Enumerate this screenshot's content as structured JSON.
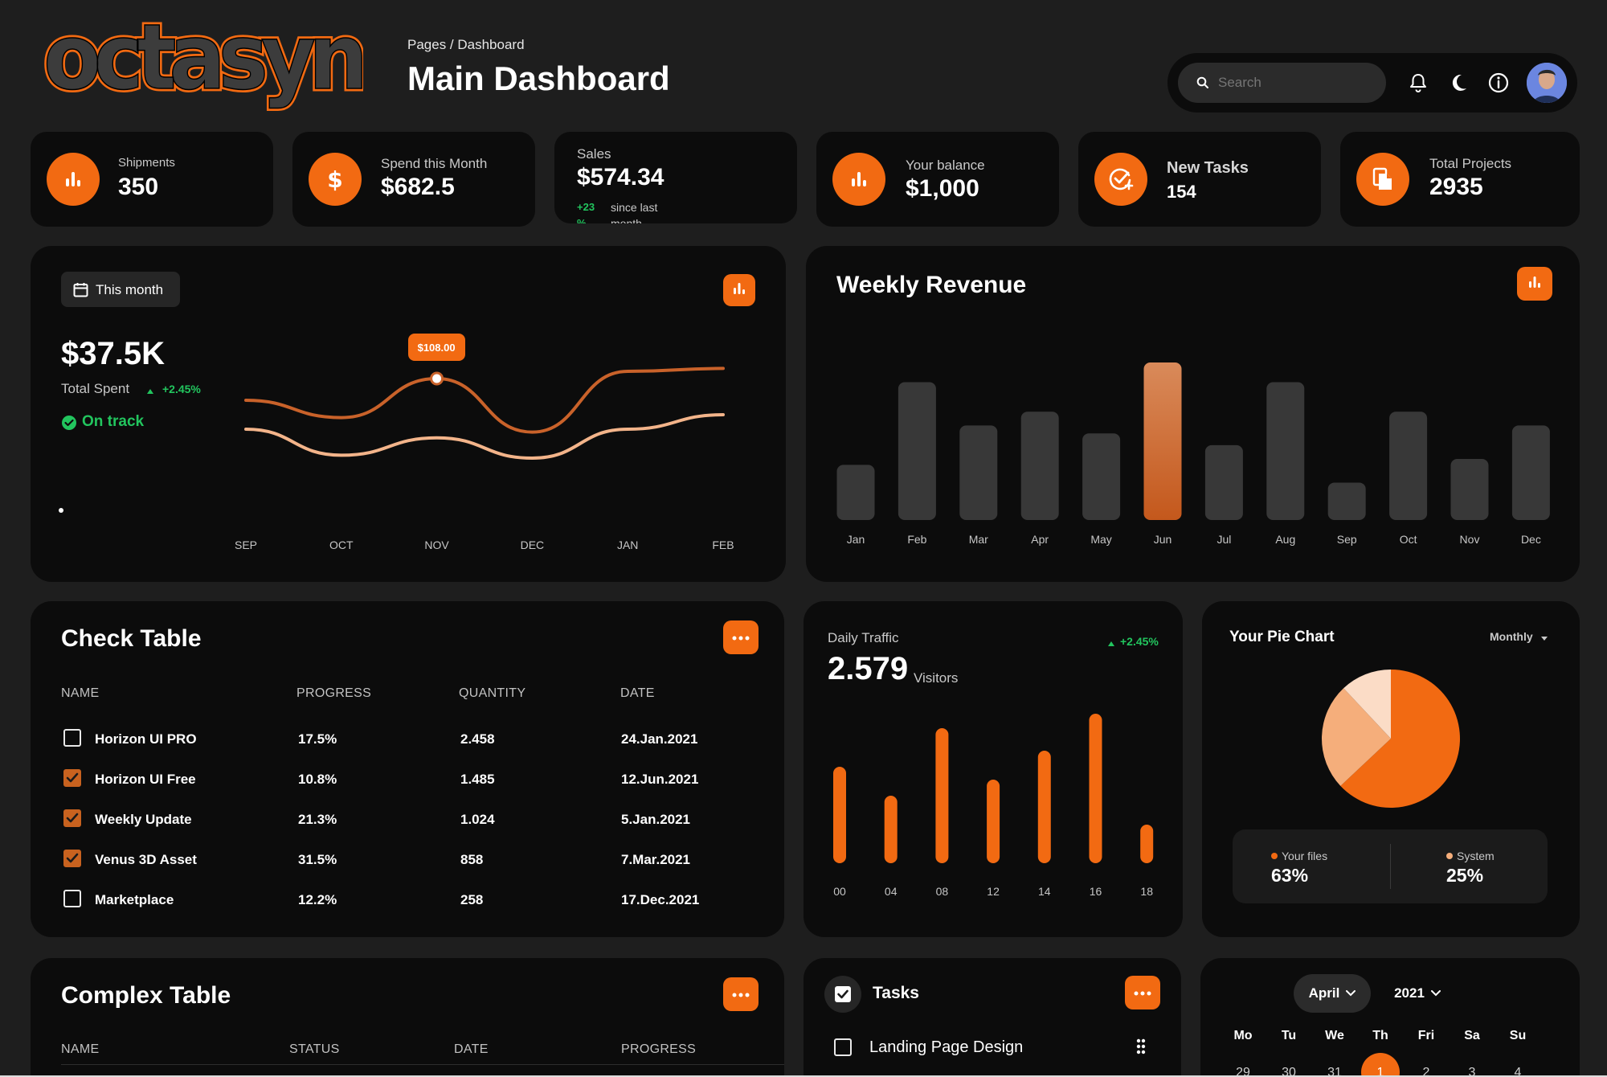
{
  "brand": {
    "logo": "octasyn"
  },
  "header": {
    "breadcrumb": "Pages / Dashboard",
    "title": "Main Dashboard",
    "search_placeholder": "Search"
  },
  "stats": [
    {
      "label": "Shipments",
      "value": "350",
      "icon": "bar-chart-icon"
    },
    {
      "label": "Spend this Month",
      "value": "$682.5",
      "icon": "dollar-icon"
    },
    {
      "label": "Sales",
      "value": "$574.34",
      "delta": "+23",
      "delta_tail": "%",
      "since": "since last",
      "since_tail": "month"
    },
    {
      "label": "Your balance",
      "value": "$1,000",
      "icon": "bar-chart-icon"
    },
    {
      "label": "New Tasks",
      "value": "154",
      "icon": "task-add-icon"
    },
    {
      "label": "Total Projects",
      "value": "2935",
      "icon": "document-icon"
    }
  ],
  "spent_card": {
    "range_button": "This month",
    "amount": "$37.5K",
    "label": "Total Spent",
    "delta": "+2.45%",
    "status": "On track",
    "tooltip": "$108.00",
    "chart_data": {
      "type": "line",
      "categories": [
        "SEP",
        "OCT",
        "NOV",
        "DEC",
        "JAN",
        "FEB"
      ],
      "series": [
        {
          "values": [
            60,
            48,
            75,
            38,
            80,
            82
          ]
        },
        {
          "values": [
            40,
            22,
            34,
            20,
            40,
            50
          ]
        }
      ],
      "ylim": [
        0,
        100
      ]
    }
  },
  "weekly_revenue": {
    "title": "Weekly Revenue",
    "highlight_color": "#c4581c",
    "chart_data": {
      "type": "bar",
      "categories": [
        "Jan",
        "Feb",
        "Mar",
        "Apr",
        "May",
        "Jun",
        "Jul",
        "Aug",
        "Sep",
        "Oct",
        "Nov",
        "Dec"
      ],
      "values": [
        28,
        70,
        48,
        55,
        44,
        80,
        38,
        70,
        19,
        55,
        31,
        48
      ],
      "ylim": [
        0,
        80
      ],
      "highlight": "Jun"
    }
  },
  "check_table": {
    "title": "Check Table",
    "columns": [
      "NAME",
      "PROGRESS",
      "QUANTITY",
      "DATE"
    ],
    "rows": [
      {
        "checked": false,
        "name": "Horizon UI PRO",
        "progress": "17.5%",
        "quantity": "2.458",
        "date": "24.Jan.2021"
      },
      {
        "checked": true,
        "name": "Horizon UI Free",
        "progress": "10.8%",
        "quantity": "1.485",
        "date": "12.Jun.2021"
      },
      {
        "checked": true,
        "name": "Weekly Update",
        "progress": "21.3%",
        "quantity": "1.024",
        "date": "5.Jan.2021"
      },
      {
        "checked": true,
        "name": "Venus 3D Asset",
        "progress": "31.5%",
        "quantity": "858",
        "date": "7.Mar.2021"
      },
      {
        "checked": false,
        "name": "Marketplace",
        "progress": "12.2%",
        "quantity": "258",
        "date": "17.Dec.2021"
      }
    ]
  },
  "daily_traffic": {
    "title": "Daily Traffic",
    "value": "2.579",
    "unit": "Visitors",
    "delta": "+2.45%",
    "chart_data": {
      "type": "bar",
      "categories": [
        "00",
        "04",
        "08",
        "12",
        "14",
        "16",
        "18"
      ],
      "values": [
        120,
        84,
        168,
        104,
        140,
        186,
        48
      ],
      "ylim": [
        0,
        190
      ]
    }
  },
  "pie": {
    "title": "Your Pie Chart",
    "period": "Monthly",
    "legend": [
      {
        "label": "Your files",
        "value": "63%",
        "color": "#f26a12"
      },
      {
        "label": "System",
        "value": "25%",
        "color": "#f5ae7b"
      }
    ],
    "chart_data": {
      "type": "pie",
      "slices": [
        {
          "label": "Your files",
          "value": 63,
          "color": "#f26a12"
        },
        {
          "label": "System",
          "value": 25,
          "color": "#f5ae7b"
        },
        {
          "label": "",
          "value": 12,
          "color": "#fbdcc6"
        }
      ]
    }
  },
  "complex_table": {
    "title": "Complex Table",
    "columns": [
      "NAME",
      "STATUS",
      "DATE",
      "PROGRESS"
    ]
  },
  "tasks": {
    "title": "Tasks",
    "items": [
      "Landing Page Design"
    ]
  },
  "calendar": {
    "month": "April",
    "year": "2021",
    "weekdays": [
      "Mo",
      "Tu",
      "We",
      "Th",
      "Fri",
      "Sa",
      "Su"
    ],
    "first_row": [
      "29",
      "30",
      "31",
      "1",
      "2",
      "3",
      "4"
    ],
    "selected": "1"
  },
  "colors": {
    "accent": "#f26a12",
    "card": "#0c0c0c",
    "background": "#1e1e1e",
    "positive": "#22c55e"
  }
}
